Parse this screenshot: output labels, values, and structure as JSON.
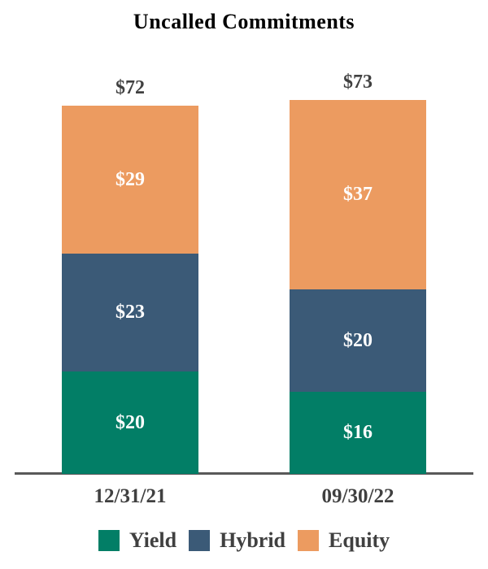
{
  "chart_data": {
    "type": "bar",
    "stacked": true,
    "title": "Uncalled Commitments",
    "categories": [
      "12/31/21",
      "09/30/22"
    ],
    "series": [
      {
        "name": "Yield",
        "color": "#027E66",
        "values": [
          20,
          16
        ],
        "labels": [
          "$20",
          "$16"
        ]
      },
      {
        "name": "Hybrid",
        "color": "#3B5A77",
        "values": [
          23,
          20
        ],
        "labels": [
          "$23",
          "$20"
        ]
      },
      {
        "name": "Equity",
        "color": "#EC9B60",
        "values": [
          29,
          37
        ],
        "labels": [
          "$29",
          "$37"
        ]
      }
    ],
    "totals": [
      72,
      73
    ],
    "total_labels": [
      "$72",
      "$73"
    ],
    "legend": [
      "Yield",
      "Hybrid",
      "Equity"
    ],
    "legend_position": "bottom",
    "value_prefix": "$",
    "ylim": [
      0,
      80
    ],
    "grid": false,
    "colors": {
      "title": "#000000",
      "axis_line": "#595959",
      "outside_labels": "#404040",
      "segment_labels": "#FFFFFF"
    }
  }
}
